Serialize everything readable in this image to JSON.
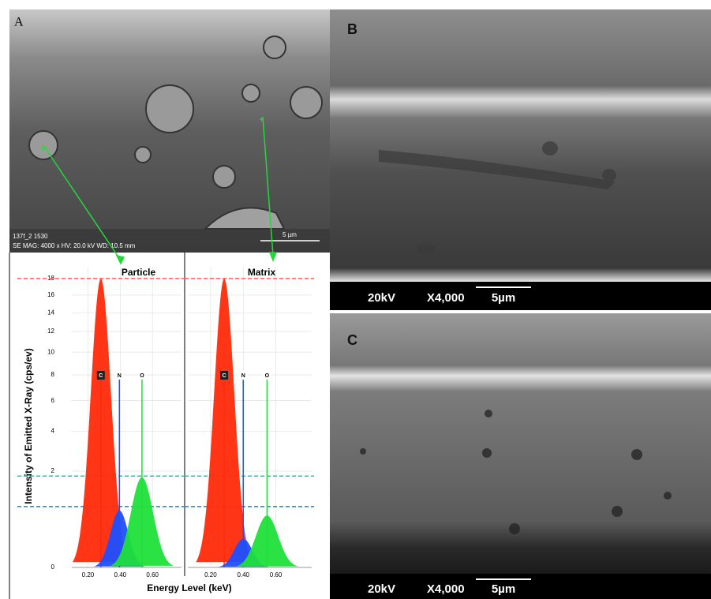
{
  "panels": {
    "a": {
      "label": "A",
      "info": "137f_2 1530",
      "meta": "SE MAG: 4000 x HV: 20.0 kV WD: 10.5 mm",
      "scale": "5 µm"
    },
    "b": {
      "label": "B",
      "voltage": "20kV",
      "mag": "X4,000",
      "scale": "5µm"
    },
    "c": {
      "label": "C",
      "voltage": "20kV",
      "mag": "X4,000",
      "scale": "5µm"
    }
  },
  "axes": {
    "ylabel": "Intensity of Emitted X-Ray (cps/ev)",
    "xlabel": "Energy Level (keV)",
    "yscale": "sqrt",
    "ylim": [
      0,
      19.5
    ],
    "yticks": [
      0,
      2,
      4,
      6,
      8,
      10,
      12,
      14,
      16,
      18
    ],
    "reference_lines": [
      {
        "value": 18,
        "color": "#ff6a5a"
      },
      {
        "value": 1.8,
        "color": "#19c9a6"
      },
      {
        "value": 0.8,
        "color": "#2a8fd0"
      }
    ]
  },
  "chart_data": [
    {
      "type": "spectrum",
      "title": "Particle",
      "categories": [
        "C",
        "N",
        "O"
      ],
      "x": [
        0.28,
        0.395,
        0.535
      ],
      "values": [
        18,
        0.7,
        1.75
      ],
      "colors": [
        "#ff2a0a",
        "#1f4fff",
        "#1fe03a"
      ],
      "xlim": [
        0.1,
        0.78
      ],
      "xticks": [
        {
          "value": 0.2,
          "label": "0.20"
        },
        {
          "value": 0.4,
          "label": "0.40"
        },
        {
          "value": 0.6,
          "label": "0.60"
        }
      ]
    },
    {
      "type": "spectrum",
      "title": "Matrix",
      "categories": [
        "C",
        "N",
        "O"
      ],
      "x": [
        0.283,
        0.4,
        0.546
      ],
      "values": [
        18,
        0.18,
        0.58
      ],
      "colors": [
        "#ff2a0a",
        "#1f4fff",
        "#1fe03a"
      ],
      "xlim": [
        0.06,
        0.82
      ],
      "xticks": [
        {
          "value": 0.2,
          "label": "0.20"
        },
        {
          "value": 0.4,
          "label": "0.40"
        },
        {
          "value": 0.6,
          "label": "0.60"
        }
      ]
    }
  ]
}
